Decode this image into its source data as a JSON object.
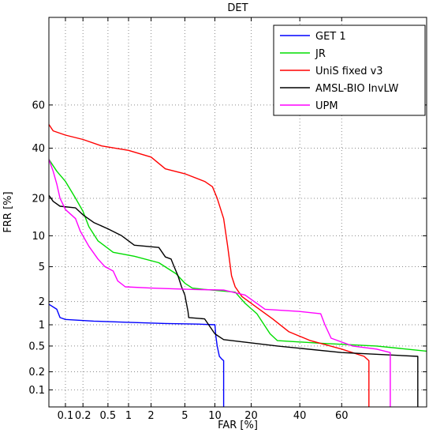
{
  "chart_data": {
    "type": "line",
    "title": "DET",
    "xlabel": "FAR [%]",
    "ylabel": "FRR [%]",
    "x_scale": "normal-deviate (probit)",
    "y_scale": "normal-deviate (probit)",
    "xlim": [
      0.05,
      90
    ],
    "ylim": [
      0.05,
      90
    ],
    "grid": true,
    "legend_position": "top-right",
    "x_ticks": [
      {
        "value": 0.1,
        "label": "0.1"
      },
      {
        "value": 0.2,
        "label": "0.2"
      },
      {
        "value": 0.5,
        "label": "0.5"
      },
      {
        "value": 1,
        "label": "1"
      },
      {
        "value": 2,
        "label": "2"
      },
      {
        "value": 5,
        "label": "5"
      },
      {
        "value": 10,
        "label": "10"
      },
      {
        "value": 20,
        "label": "20"
      },
      {
        "value": 40,
        "label": "40"
      },
      {
        "value": 60,
        "label": "60"
      }
    ],
    "y_ticks": [
      {
        "value": 0.1,
        "label": "0.1"
      },
      {
        "value": 0.2,
        "label": "0.2"
      },
      {
        "value": 0.5,
        "label": "0.5"
      },
      {
        "value": 1,
        "label": "1"
      },
      {
        "value": 2,
        "label": "2"
      },
      {
        "value": 5,
        "label": "5"
      },
      {
        "value": 10,
        "label": "10"
      },
      {
        "value": 20,
        "label": "20"
      },
      {
        "value": 40,
        "label": "40"
      },
      {
        "value": 60,
        "label": "60"
      }
    ],
    "series": [
      {
        "name": "GET 1",
        "color": "#0000ff",
        "points": [
          [
            0.05,
            1.85
          ],
          [
            0.07,
            1.6
          ],
          [
            0.08,
            1.25
          ],
          [
            0.1,
            1.18
          ],
          [
            0.3,
            1.12
          ],
          [
            1,
            1.08
          ],
          [
            3,
            1.04
          ],
          [
            7,
            1.02
          ],
          [
            10,
            1.0
          ],
          [
            10.2,
            0.7
          ],
          [
            10.5,
            0.5
          ],
          [
            11,
            0.35
          ],
          [
            11.5,
            0.32
          ],
          [
            12,
            0.3
          ],
          [
            12,
            0.05
          ]
        ]
      },
      {
        "name": "JR",
        "color": "#00dd00",
        "points": [
          [
            0.05,
            35
          ],
          [
            0.07,
            30
          ],
          [
            0.1,
            26
          ],
          [
            0.15,
            20
          ],
          [
            0.2,
            16
          ],
          [
            0.25,
            12
          ],
          [
            0.35,
            9
          ],
          [
            0.6,
            7
          ],
          [
            1.2,
            6.4
          ],
          [
            2.5,
            5.5
          ],
          [
            4,
            4.2
          ],
          [
            5,
            3.3
          ],
          [
            6,
            2.9
          ],
          [
            8,
            2.8
          ],
          [
            15,
            2.6
          ],
          [
            18,
            1.9
          ],
          [
            22,
            1.4
          ],
          [
            27,
            0.75
          ],
          [
            30,
            0.6
          ],
          [
            50,
            0.55
          ],
          [
            75,
            0.5
          ],
          [
            90,
            0.42
          ]
        ]
      },
      {
        "name": "UniS fixed v3",
        "color": "#ff0000",
        "points": [
          [
            0.05,
            51
          ],
          [
            0.06,
            48
          ],
          [
            0.1,
            46
          ],
          [
            0.2,
            44
          ],
          [
            0.4,
            41
          ],
          [
            1,
            39
          ],
          [
            2,
            36
          ],
          [
            3,
            31
          ],
          [
            5,
            29
          ],
          [
            8,
            26
          ],
          [
            9.5,
            24
          ],
          [
            10.5,
            20
          ],
          [
            12,
            14
          ],
          [
            13,
            8
          ],
          [
            14,
            4
          ],
          [
            15,
            3
          ],
          [
            17,
            2.3
          ],
          [
            20,
            1.9
          ],
          [
            24,
            1.5
          ],
          [
            28,
            1.2
          ],
          [
            35,
            0.8
          ],
          [
            45,
            0.6
          ],
          [
            60,
            0.45
          ],
          [
            70,
            0.35
          ],
          [
            72,
            0.3
          ],
          [
            72,
            0.05
          ]
        ]
      },
      {
        "name": "AMSL-BIO InvLW",
        "color": "#000000",
        "points": [
          [
            0.05,
            21
          ],
          [
            0.06,
            19
          ],
          [
            0.08,
            17.5
          ],
          [
            0.15,
            17
          ],
          [
            0.2,
            15
          ],
          [
            0.3,
            13
          ],
          [
            0.5,
            11.5
          ],
          [
            0.8,
            10
          ],
          [
            1.2,
            8.2
          ],
          [
            2.5,
            7.8
          ],
          [
            3,
            6.3
          ],
          [
            3.5,
            6.0
          ],
          [
            3.8,
            5.0
          ],
          [
            4.2,
            4.0
          ],
          [
            4.6,
            3.0
          ],
          [
            5,
            2.4
          ],
          [
            5.4,
            1.5
          ],
          [
            5.5,
            1.25
          ],
          [
            8,
            1.2
          ],
          [
            10,
            0.75
          ],
          [
            12,
            0.62
          ],
          [
            30,
            0.5
          ],
          [
            60,
            0.4
          ],
          [
            88,
            0.35
          ],
          [
            88,
            0.05
          ]
        ]
      },
      {
        "name": "UPM",
        "color": "#ff00ff",
        "points": [
          [
            0.05,
            35
          ],
          [
            0.06,
            30
          ],
          [
            0.07,
            25
          ],
          [
            0.08,
            20
          ],
          [
            0.1,
            16.5
          ],
          [
            0.15,
            14
          ],
          [
            0.18,
            11
          ],
          [
            0.25,
            8
          ],
          [
            0.35,
            6
          ],
          [
            0.45,
            5
          ],
          [
            0.6,
            4.5
          ],
          [
            0.7,
            3.5
          ],
          [
            0.9,
            3.0
          ],
          [
            2,
            2.9
          ],
          [
            6,
            2.8
          ],
          [
            12,
            2.75
          ],
          [
            18,
            2.4
          ],
          [
            25,
            1.6
          ],
          [
            40,
            1.5
          ],
          [
            50,
            1.4
          ],
          [
            52,
            1.0
          ],
          [
            55,
            0.65
          ],
          [
            65,
            0.5
          ],
          [
            75,
            0.45
          ],
          [
            80,
            0.4
          ],
          [
            80,
            0.05
          ]
        ]
      }
    ]
  }
}
